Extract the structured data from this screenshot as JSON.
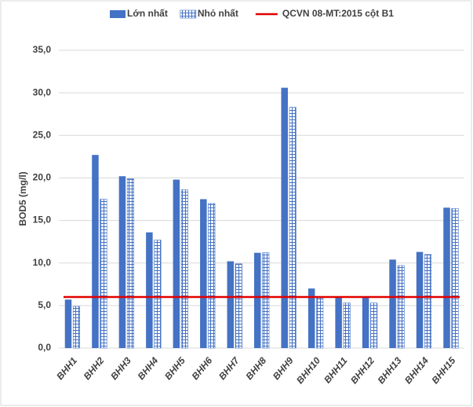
{
  "chart_data": {
    "type": "bar",
    "y_label": "BOD5 (mg/l)",
    "categories": [
      "BHH1",
      "BHH2",
      "BHH3",
      "BHH4",
      "BHH5",
      "BHH6",
      "BHH7",
      "BHH8",
      "BHH9",
      "BHH10",
      "BHH11",
      "BHH12",
      "BHH13",
      "BHH14",
      "BHH15"
    ],
    "series": [
      {
        "name": "Lớn nhất",
        "color": "#4472c4",
        "pattern": "solid",
        "values": [
          5.7,
          22.7,
          20.2,
          13.6,
          19.8,
          17.5,
          10.2,
          11.2,
          30.6,
          7.0,
          6.0,
          6.0,
          10.4,
          11.3,
          16.5
        ]
      },
      {
        "name": "Nhỏ nhất",
        "color": "#4472c4",
        "pattern": "grid",
        "values": [
          4.9,
          17.5,
          19.9,
          12.7,
          18.6,
          17.0,
          9.9,
          11.2,
          28.3,
          5.9,
          5.3,
          5.3,
          9.7,
          11.0,
          16.4
        ]
      }
    ],
    "reference_lines": [
      {
        "name": "QCVN 08-MT:2015 cột B1",
        "color": "#e00000",
        "value": 6.0
      }
    ],
    "ylim": [
      0,
      35
    ],
    "yticks": [
      {
        "value": 0,
        "label": "0,0"
      },
      {
        "value": 5,
        "label": "5,0"
      },
      {
        "value": 10,
        "label": "10,0"
      },
      {
        "value": 15,
        "label": "15,0"
      },
      {
        "value": 20,
        "label": "20,0"
      },
      {
        "value": 25,
        "label": "25,0"
      },
      {
        "value": 30,
        "label": "30,0"
      },
      {
        "value": 35,
        "label": "35,0"
      }
    ],
    "grid": true,
    "legend": "top"
  }
}
